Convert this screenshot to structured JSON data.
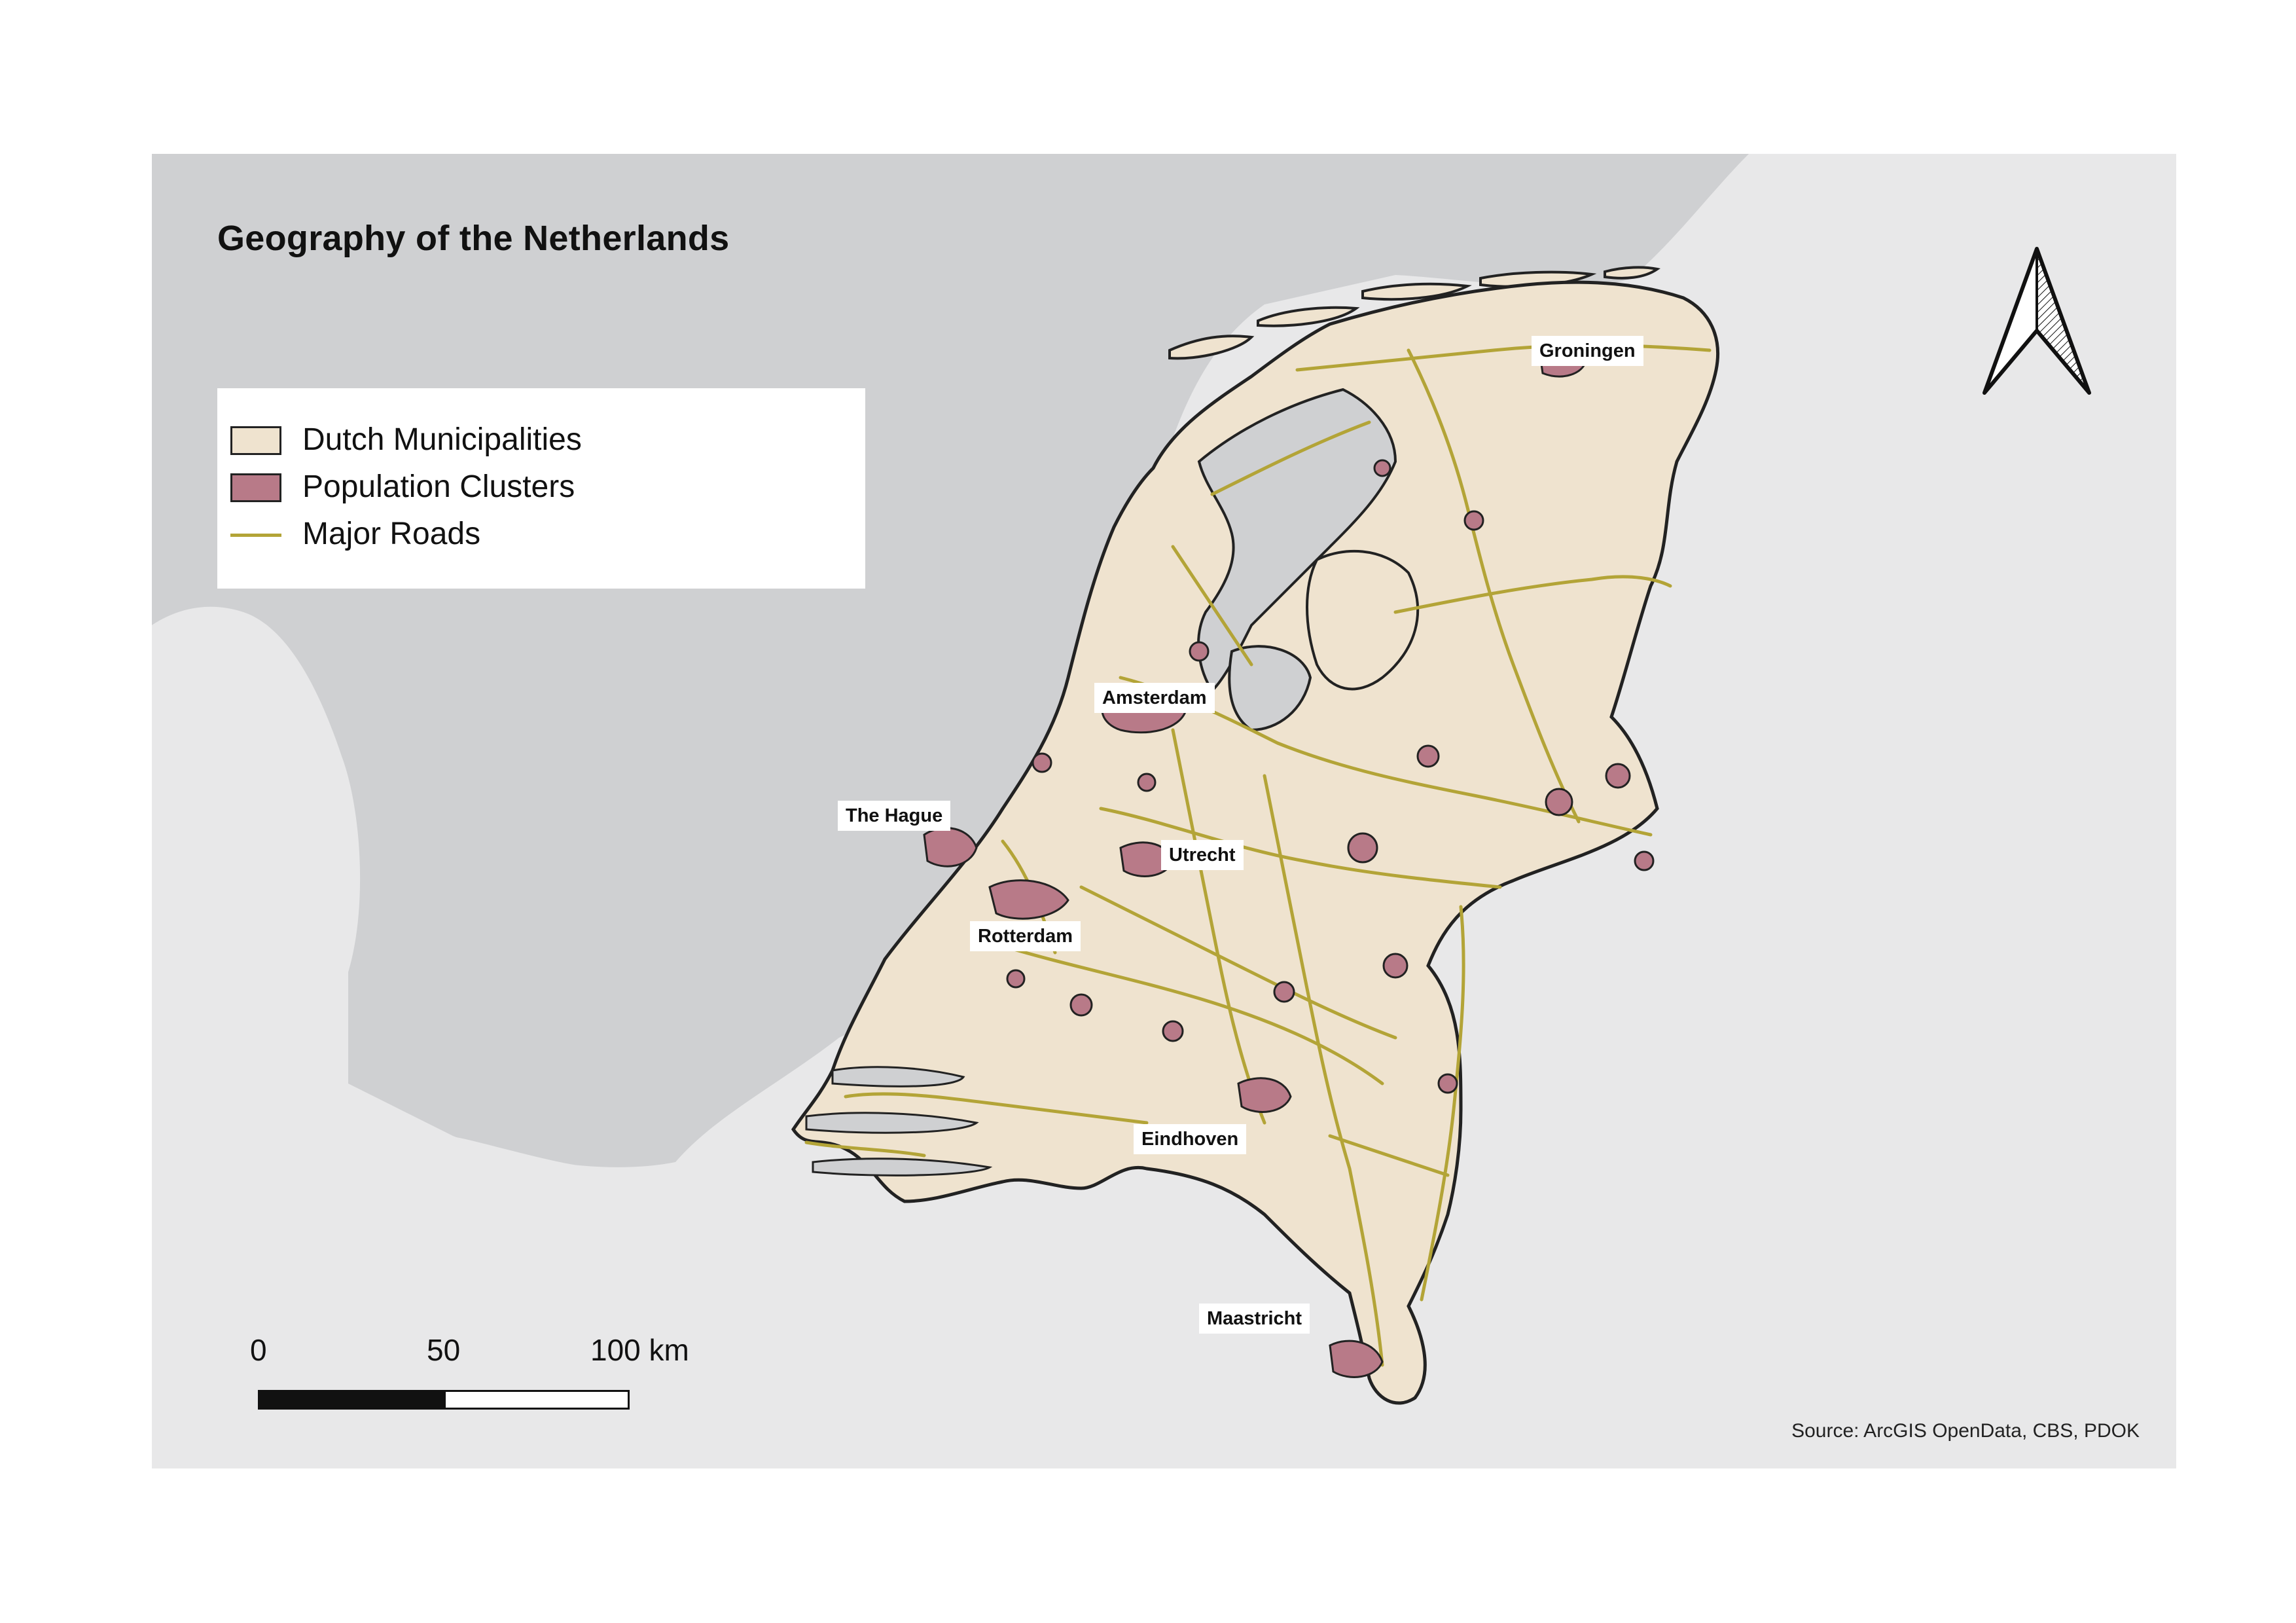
{
  "title": "Geography of the Netherlands",
  "legend": {
    "items": [
      {
        "label": "Dutch Municipalities",
        "kind": "fill",
        "color": "#efe3cf"
      },
      {
        "label": "Population Clusters",
        "kind": "fill",
        "color": "#b87a88"
      },
      {
        "label": "Major Roads",
        "kind": "line",
        "color": "#b3a437"
      }
    ]
  },
  "cities": {
    "groningen": "Groningen",
    "amsterdam": "Amsterdam",
    "the_hague": "The Hague",
    "utrecht": "Utrecht",
    "rotterdam": "Rotterdam",
    "eindhoven": "Eindhoven",
    "maastricht": "Maastricht"
  },
  "scale": {
    "label_0": "0",
    "label_50": "50",
    "label_100": "100 km"
  },
  "source": "Source: ArcGIS OpenData, CBS, PDOK",
  "colors": {
    "sea": "#cfd0d2",
    "land_outside": "#e8e8e9",
    "municipality_fill": "#efe3cf",
    "cluster_fill": "#b87a88",
    "road": "#b3a437",
    "border": "#222222"
  }
}
